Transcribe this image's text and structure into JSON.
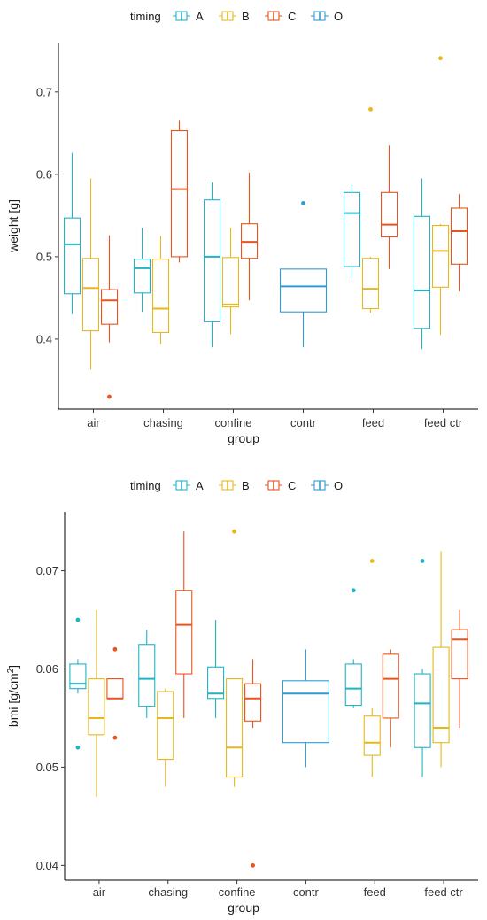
{
  "chart_data": [
    {
      "type": "boxplot",
      "legend": {
        "title": "timing",
        "position": "top",
        "entries": [
          "A",
          "B",
          "C",
          "O"
        ]
      },
      "colors": {
        "A": "#1FB3C6",
        "B": "#E6B81E",
        "C": "#E8531F",
        "O": "#2D9CD6"
      },
      "xlabel": "group",
      "ylabel": "weight [g]",
      "ylabel_sup": "",
      "ylabel_tail": "",
      "categories": [
        "air",
        "chasing",
        "confine",
        "contr",
        "feed",
        "feed ctr"
      ],
      "ylim": [
        0.315,
        0.76
      ],
      "yticks": [
        0.4,
        0.5,
        0.6,
        0.7
      ],
      "ytick_labels": [
        "0.4",
        "0.5",
        "0.6",
        "0.7"
      ],
      "grid": false,
      "boxes": [
        {
          "group": "air",
          "timing": "A",
          "min": 0.43,
          "q1": 0.455,
          "median": 0.515,
          "q3": 0.547,
          "max": 0.626,
          "outliers": []
        },
        {
          "group": "air",
          "timing": "B",
          "min": 0.363,
          "q1": 0.41,
          "median": 0.462,
          "q3": 0.498,
          "max": 0.595,
          "outliers": []
        },
        {
          "group": "air",
          "timing": "C",
          "min": 0.396,
          "q1": 0.418,
          "median": 0.447,
          "q3": 0.46,
          "max": 0.526,
          "outliers": [
            0.33
          ]
        },
        {
          "group": "chasing",
          "timing": "A",
          "min": 0.433,
          "q1": 0.456,
          "median": 0.486,
          "q3": 0.497,
          "max": 0.535,
          "outliers": []
        },
        {
          "group": "chasing",
          "timing": "B",
          "min": 0.394,
          "q1": 0.408,
          "median": 0.437,
          "q3": 0.497,
          "max": 0.525,
          "outliers": []
        },
        {
          "group": "chasing",
          "timing": "C",
          "min": 0.493,
          "q1": 0.5,
          "median": 0.582,
          "q3": 0.653,
          "max": 0.665,
          "outliers": []
        },
        {
          "group": "confine",
          "timing": "A",
          "min": 0.39,
          "q1": 0.421,
          "median": 0.5,
          "q3": 0.569,
          "max": 0.59,
          "outliers": []
        },
        {
          "group": "confine",
          "timing": "B",
          "min": 0.406,
          "q1": 0.439,
          "median": 0.442,
          "q3": 0.499,
          "max": 0.535,
          "outliers": []
        },
        {
          "group": "confine",
          "timing": "C",
          "min": 0.447,
          "q1": 0.498,
          "median": 0.518,
          "q3": 0.54,
          "max": 0.602,
          "outliers": []
        },
        {
          "group": "contr",
          "timing": "O",
          "min": 0.39,
          "q1": 0.433,
          "median": 0.464,
          "q3": 0.485,
          "max": 0.485,
          "outliers": [
            0.565
          ]
        },
        {
          "group": "feed",
          "timing": "A",
          "min": 0.474,
          "q1": 0.488,
          "median": 0.553,
          "q3": 0.578,
          "max": 0.587,
          "outliers": []
        },
        {
          "group": "feed",
          "timing": "B",
          "min": 0.432,
          "q1": 0.437,
          "median": 0.461,
          "q3": 0.498,
          "max": 0.5,
          "outliers": [
            0.679
          ]
        },
        {
          "group": "feed",
          "timing": "C",
          "min": 0.485,
          "q1": 0.524,
          "median": 0.539,
          "q3": 0.578,
          "max": 0.635,
          "outliers": []
        },
        {
          "group": "feed ctr",
          "timing": "A",
          "min": 0.388,
          "q1": 0.413,
          "median": 0.459,
          "q3": 0.549,
          "max": 0.595,
          "outliers": []
        },
        {
          "group": "feed ctr",
          "timing": "B",
          "min": 0.405,
          "q1": 0.463,
          "median": 0.507,
          "q3": 0.538,
          "max": 0.54,
          "outliers": [
            0.741
          ]
        },
        {
          "group": "feed ctr",
          "timing": "C",
          "min": 0.458,
          "q1": 0.491,
          "median": 0.531,
          "q3": 0.559,
          "max": 0.576,
          "outliers": []
        }
      ]
    },
    {
      "type": "boxplot",
      "legend": {
        "title": "timing",
        "position": "top",
        "entries": [
          "A",
          "B",
          "C",
          "O"
        ]
      },
      "colors": {
        "A": "#1FB3C6",
        "B": "#E6B81E",
        "C": "#E8531F",
        "O": "#2D9CD6"
      },
      "xlabel": "group",
      "ylabel": "bmi [g/cm",
      "ylabel_sup": "2",
      "ylabel_tail": "]",
      "categories": [
        "air",
        "chasing",
        "confine",
        "contr",
        "feed",
        "feed ctr"
      ],
      "ylim": [
        0.0385,
        0.076
      ],
      "yticks": [
        0.04,
        0.05,
        0.06,
        0.07
      ],
      "ytick_labels": [
        "0.04",
        "0.05",
        "0.06",
        "0.07"
      ],
      "grid": false,
      "boxes": [
        {
          "group": "air",
          "timing": "A",
          "min": 0.0575,
          "q1": 0.058,
          "median": 0.0585,
          "q3": 0.0605,
          "max": 0.061,
          "outliers": [
            0.065,
            0.052
          ]
        },
        {
          "group": "air",
          "timing": "B",
          "min": 0.047,
          "q1": 0.0533,
          "median": 0.055,
          "q3": 0.059,
          "max": 0.066,
          "outliers": []
        },
        {
          "group": "air",
          "timing": "C",
          "min": 0.057,
          "q1": 0.057,
          "median": 0.057,
          "q3": 0.059,
          "max": 0.059,
          "outliers": [
            0.062,
            0.053
          ]
        },
        {
          "group": "chasing",
          "timing": "A",
          "min": 0.055,
          "q1": 0.0562,
          "median": 0.059,
          "q3": 0.0625,
          "max": 0.064,
          "outliers": []
        },
        {
          "group": "chasing",
          "timing": "B",
          "min": 0.048,
          "q1": 0.0508,
          "median": 0.055,
          "q3": 0.0577,
          "max": 0.058,
          "outliers": []
        },
        {
          "group": "chasing",
          "timing": "C",
          "min": 0.055,
          "q1": 0.0595,
          "median": 0.0645,
          "q3": 0.068,
          "max": 0.074,
          "outliers": []
        },
        {
          "group": "confine",
          "timing": "A",
          "min": 0.055,
          "q1": 0.057,
          "median": 0.0575,
          "q3": 0.0602,
          "max": 0.065,
          "outliers": []
        },
        {
          "group": "confine",
          "timing": "B",
          "min": 0.048,
          "q1": 0.049,
          "median": 0.052,
          "q3": 0.059,
          "max": 0.059,
          "outliers": [
            0.074
          ]
        },
        {
          "group": "confine",
          "timing": "C",
          "min": 0.054,
          "q1": 0.0547,
          "median": 0.057,
          "q3": 0.0585,
          "max": 0.061,
          "outliers": [
            0.04
          ]
        },
        {
          "group": "contr",
          "timing": "O",
          "min": 0.05,
          "q1": 0.0525,
          "median": 0.0575,
          "q3": 0.0588,
          "max": 0.062,
          "outliers": []
        },
        {
          "group": "feed",
          "timing": "A",
          "min": 0.056,
          "q1": 0.0563,
          "median": 0.058,
          "q3": 0.0605,
          "max": 0.061,
          "outliers": [
            0.068
          ]
        },
        {
          "group": "feed",
          "timing": "B",
          "min": 0.049,
          "q1": 0.0512,
          "median": 0.0525,
          "q3": 0.0552,
          "max": 0.056,
          "outliers": [
            0.071
          ]
        },
        {
          "group": "feed",
          "timing": "C",
          "min": 0.052,
          "q1": 0.055,
          "median": 0.059,
          "q3": 0.0615,
          "max": 0.062,
          "outliers": []
        },
        {
          "group": "feed ctr",
          "timing": "A",
          "min": 0.049,
          "q1": 0.052,
          "median": 0.0565,
          "q3": 0.0595,
          "max": 0.06,
          "outliers": [
            0.071
          ]
        },
        {
          "group": "feed ctr",
          "timing": "B",
          "min": 0.05,
          "q1": 0.0525,
          "median": 0.054,
          "q3": 0.0622,
          "max": 0.072,
          "outliers": []
        },
        {
          "group": "feed ctr",
          "timing": "C",
          "min": 0.054,
          "q1": 0.059,
          "median": 0.063,
          "q3": 0.064,
          "max": 0.066,
          "outliers": []
        }
      ]
    }
  ]
}
